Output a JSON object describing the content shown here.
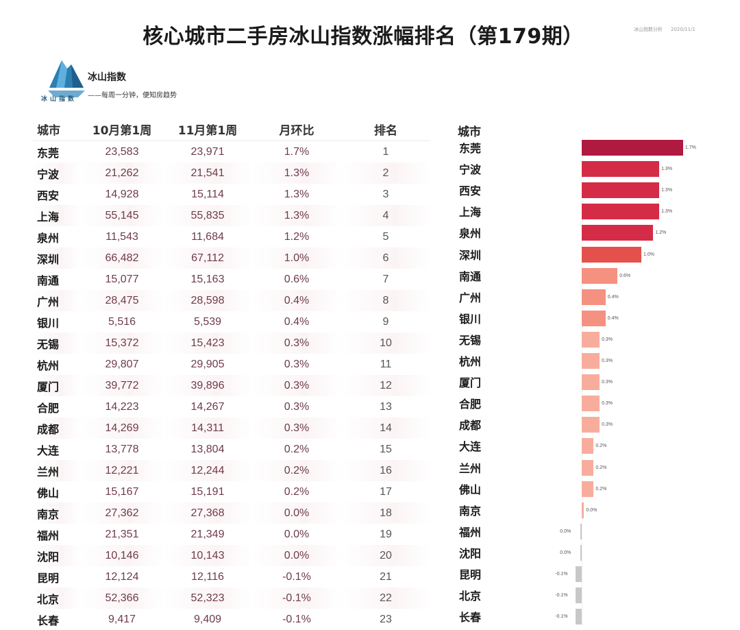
{
  "title": "核心城市二手房冰山指数涨幅排名（第179期）",
  "meta": [
    "冰山指数分析",
    "2020/11/1"
  ],
  "logo": {
    "name": "冰山指数",
    "slogan": "——每周一分钟，便知房趋势",
    "caption": "冰山指数"
  },
  "table": {
    "headers": [
      "城市",
      "10月第1周",
      "11月第1周",
      "月环比",
      "排名"
    ],
    "rows": [
      [
        "东莞",
        "23,583",
        "23,971",
        "1.7%",
        "1"
      ],
      [
        "宁波",
        "21,262",
        "21,541",
        "1.3%",
        "2"
      ],
      [
        "西安",
        "14,928",
        "15,114",
        "1.3%",
        "3"
      ],
      [
        "上海",
        "55,145",
        "55,835",
        "1.3%",
        "4"
      ],
      [
        "泉州",
        "11,543",
        "11,684",
        "1.2%",
        "5"
      ],
      [
        "深圳",
        "66,482",
        "67,112",
        "1.0%",
        "6"
      ],
      [
        "南通",
        "15,077",
        "15,163",
        "0.6%",
        "7"
      ],
      [
        "广州",
        "28,475",
        "28,598",
        "0.4%",
        "8"
      ],
      [
        "银川",
        "5,516",
        "5,539",
        "0.4%",
        "9"
      ],
      [
        "无锡",
        "15,372",
        "15,423",
        "0.3%",
        "10"
      ],
      [
        "杭州",
        "29,807",
        "29,905",
        "0.3%",
        "11"
      ],
      [
        "厦门",
        "39,772",
        "39,896",
        "0.3%",
        "12"
      ],
      [
        "合肥",
        "14,223",
        "14,267",
        "0.3%",
        "13"
      ],
      [
        "成都",
        "14,269",
        "14,311",
        "0.3%",
        "14"
      ],
      [
        "大连",
        "13,778",
        "13,804",
        "0.2%",
        "15"
      ],
      [
        "兰州",
        "12,221",
        "12,244",
        "0.2%",
        "16"
      ],
      [
        "佛山",
        "15,167",
        "15,191",
        "0.2%",
        "17"
      ],
      [
        "南京",
        "27,362",
        "27,368",
        "0.0%",
        "18"
      ],
      [
        "福州",
        "21,351",
        "21,349",
        "0.0%",
        "19"
      ],
      [
        "沈阳",
        "10,146",
        "10,143",
        "0.0%",
        "20"
      ],
      [
        "昆明",
        "12,124",
        "12,116",
        "-0.1%",
        "21"
      ],
      [
        "北京",
        "52,366",
        "52,323",
        "-0.1%",
        "22"
      ],
      [
        "长春",
        "9,417",
        "9,409",
        "-0.1%",
        "23"
      ]
    ]
  },
  "chart_data": {
    "type": "bar",
    "orientation": "horizontal",
    "header": "城市",
    "categories": [
      "东莞",
      "宁波",
      "西安",
      "上海",
      "泉州",
      "深圳",
      "南通",
      "广州",
      "银川",
      "无锡",
      "杭州",
      "厦门",
      "合肥",
      "成都",
      "大连",
      "兰州",
      "佛山",
      "南京",
      "福州",
      "沈阳",
      "昆明",
      "北京",
      "长春"
    ],
    "values": [
      1.7,
      1.3,
      1.3,
      1.3,
      1.2,
      1.0,
      0.6,
      0.4,
      0.4,
      0.3,
      0.3,
      0.3,
      0.3,
      0.3,
      0.2,
      0.2,
      0.2,
      0.04,
      -0.02,
      -0.02,
      -0.1,
      -0.1,
      -0.1
    ],
    "value_labels": [
      "1.7%",
      "1.3%",
      "1.3%",
      "1.3%",
      "1.2%",
      "1.0%",
      "0.6%",
      "0.4%",
      "0.4%",
      "0.3%",
      "0.3%",
      "0.3%",
      "0.3%",
      "0.3%",
      "0.2%",
      "0.2%",
      "0.2%",
      "0.0%",
      "0.0%",
      "0.0%",
      "-0.1%",
      "-0.1%",
      "-0.1%"
    ],
    "colors": {
      "top": "#b01940",
      "high": "#d42c46",
      "mid": "#e4514c",
      "low": "#f59180",
      "lower": "#f8ad9c",
      "neg": "#c8c8c8"
    }
  }
}
